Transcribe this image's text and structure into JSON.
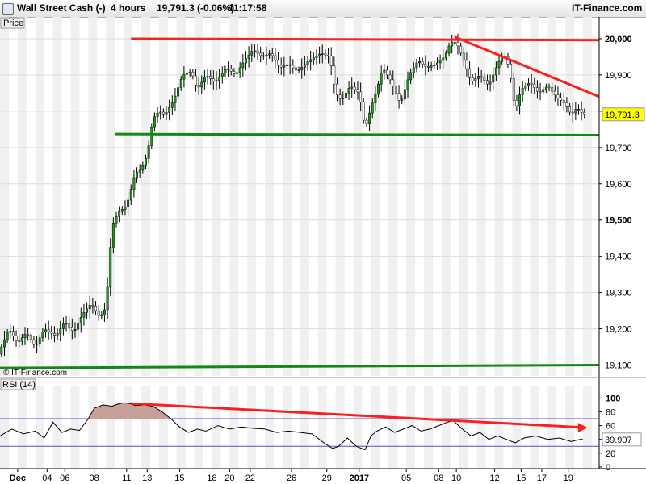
{
  "header": {
    "instrument": "Wall Street Cash (-)",
    "timeframe": "4 hours",
    "quote": "19,791.3 (-0.06%)",
    "time": "11:17:58",
    "brand": "IT-Finance.com"
  },
  "panels": {
    "price_label": "Price",
    "rsi_label": "RSI (14)",
    "watermark": "© IT-Finance.com"
  },
  "colors": {
    "resistance": "#ff1e1e",
    "support": "#118a11",
    "candle_body": "#1f9a1f",
    "rsi_line": "#000000",
    "rsi_band": "#5a4fc0",
    "last_price_bg": "#ffff00"
  },
  "chart_data": [
    {
      "type": "candlestick",
      "title": "Wall Street Cash (-)",
      "ylim": [
        19070,
        20060
      ],
      "y_ticks": [
        19100,
        19200,
        19300,
        19400,
        19500,
        19600,
        19700,
        19800,
        19900,
        20000
      ],
      "y_tick_labels": [
        "19,100",
        "19,200",
        "19,300",
        "19,400",
        "19,500",
        "19,600",
        "19,700",
        "19,800",
        "19,900",
        "20,000"
      ],
      "x_tick_labels": [
        "Dec",
        "04",
        "06",
        "08",
        "11",
        "13",
        "15",
        "18",
        "20",
        "22",
        "26",
        "29",
        "2017",
        "05",
        "08",
        "10",
        "12",
        "15",
        "17",
        "19"
      ],
      "last_price": 19791.3,
      "last_price_label": "19,791.3",
      "close_path": [
        [
          0,
          19140
        ],
        [
          3,
          19200
        ],
        [
          6,
          19160
        ],
        [
          9,
          19190
        ],
        [
          12,
          19150
        ],
        [
          15,
          19200
        ],
        [
          19,
          19180
        ],
        [
          22,
          19220
        ],
        [
          25,
          19190
        ],
        [
          28,
          19240
        ],
        [
          31,
          19270
        ],
        [
          34,
          19230
        ],
        [
          36,
          19260
        ],
        [
          38,
          19480
        ],
        [
          40,
          19520
        ],
        [
          43,
          19540
        ],
        [
          46,
          19630
        ],
        [
          48,
          19640
        ],
        [
          50,
          19680
        ],
        [
          52,
          19780
        ],
        [
          54,
          19800
        ],
        [
          56,
          19790
        ],
        [
          59,
          19830
        ],
        [
          62,
          19900
        ],
        [
          65,
          19910
        ],
        [
          67,
          19860
        ],
        [
          70,
          19900
        ],
        [
          73,
          19880
        ],
        [
          77,
          19920
        ],
        [
          80,
          19900
        ],
        [
          83,
          19940
        ],
        [
          86,
          19970
        ],
        [
          89,
          19950
        ],
        [
          92,
          19960
        ],
        [
          95,
          19920
        ],
        [
          98,
          19930
        ],
        [
          101,
          19910
        ],
        [
          105,
          19940
        ],
        [
          109,
          19960
        ],
        [
          112,
          19950
        ],
        [
          114,
          19850
        ],
        [
          116,
          19830
        ],
        [
          119,
          19870
        ],
        [
          122,
          19850
        ],
        [
          124,
          19750
        ],
        [
          126,
          19810
        ],
        [
          128,
          19860
        ],
        [
          130,
          19920
        ],
        [
          133,
          19880
        ],
        [
          136,
          19820
        ],
        [
          139,
          19900
        ],
        [
          142,
          19940
        ],
        [
          145,
          19920
        ],
        [
          148,
          19930
        ],
        [
          151,
          19950
        ],
        [
          153,
          19990
        ],
        [
          155,
          19990
        ],
        [
          158,
          19930
        ],
        [
          160,
          19880
        ],
        [
          163,
          19900
        ],
        [
          166,
          19870
        ],
        [
          169,
          19930
        ],
        [
          171,
          19960
        ],
        [
          173,
          19920
        ],
        [
          175,
          19800
        ],
        [
          177,
          19860
        ],
        [
          180,
          19880
        ],
        [
          183,
          19850
        ],
        [
          186,
          19870
        ],
        [
          189,
          19840
        ],
        [
          192,
          19820
        ],
        [
          194,
          19790
        ],
        [
          196,
          19810
        ],
        [
          198,
          19792
        ]
      ],
      "annotations": [
        {
          "name": "resistance",
          "type": "line",
          "x1": 44.5,
          "y1": 20000,
          "x2": 203.5,
          "y2": 19996
        },
        {
          "name": "falling-trendline",
          "type": "line",
          "x1": 154.5,
          "y1": 20005,
          "x2": 203.5,
          "y2": 19840
        },
        {
          "name": "upper-support",
          "type": "line",
          "x1": 39,
          "y1": 19737,
          "x2": 203.5,
          "y2": 19734
        },
        {
          "name": "lower-support",
          "type": "line",
          "x1": 0,
          "y1": 19092,
          "x2": 203.5,
          "y2": 19100
        }
      ]
    },
    {
      "type": "line",
      "title": "RSI (14)",
      "ylim": [
        0,
        105
      ],
      "y_ticks": [
        0,
        20,
        40,
        60,
        80,
        100
      ],
      "bands": [
        30,
        70
      ],
      "last_value": 39.907,
      "last_value_label": "39.907",
      "values_path": [
        [
          0,
          45
        ],
        [
          4,
          55
        ],
        [
          8,
          48
        ],
        [
          12,
          52
        ],
        [
          15,
          42
        ],
        [
          18,
          65
        ],
        [
          21,
          50
        ],
        [
          24,
          55
        ],
        [
          27,
          53
        ],
        [
          30,
          70
        ],
        [
          32,
          85
        ],
        [
          35,
          90
        ],
        [
          38,
          88
        ],
        [
          40,
          91
        ],
        [
          42,
          93
        ],
        [
          44,
          92
        ],
        [
          46,
          89
        ],
        [
          49,
          90
        ],
        [
          52,
          88
        ],
        [
          55,
          80
        ],
        [
          58,
          70
        ],
        [
          61,
          58
        ],
        [
          64,
          50
        ],
        [
          67,
          55
        ],
        [
          70,
          52
        ],
        [
          74,
          60
        ],
        [
          78,
          55
        ],
        [
          82,
          58
        ],
        [
          86,
          56
        ],
        [
          90,
          55
        ],
        [
          94,
          50
        ],
        [
          98,
          52
        ],
        [
          102,
          50
        ],
        [
          106,
          48
        ],
        [
          110,
          35
        ],
        [
          113,
          27
        ],
        [
          115,
          30
        ],
        [
          118,
          42
        ],
        [
          121,
          30
        ],
        [
          124,
          25
        ],
        [
          126,
          45
        ],
        [
          128,
          52
        ],
        [
          131,
          58
        ],
        [
          134,
          50
        ],
        [
          137,
          55
        ],
        [
          140,
          60
        ],
        [
          143,
          52
        ],
        [
          146,
          55
        ],
        [
          149,
          60
        ],
        [
          152,
          65
        ],
        [
          154,
          67
        ],
        [
          157,
          55
        ],
        [
          160,
          45
        ],
        [
          163,
          50
        ],
        [
          166,
          40
        ],
        [
          169,
          45
        ],
        [
          172,
          40
        ],
        [
          175,
          35
        ],
        [
          178,
          42
        ],
        [
          182,
          45
        ],
        [
          186,
          40
        ],
        [
          190,
          42
        ],
        [
          194,
          37
        ],
        [
          197,
          40
        ],
        [
          198,
          39.9
        ]
      ],
      "annotations": [
        {
          "name": "rsi-divergence-arrow",
          "type": "arrow",
          "x1": 44.5,
          "y1": 92,
          "x2": 198.5,
          "y2": 57
        }
      ]
    }
  ]
}
